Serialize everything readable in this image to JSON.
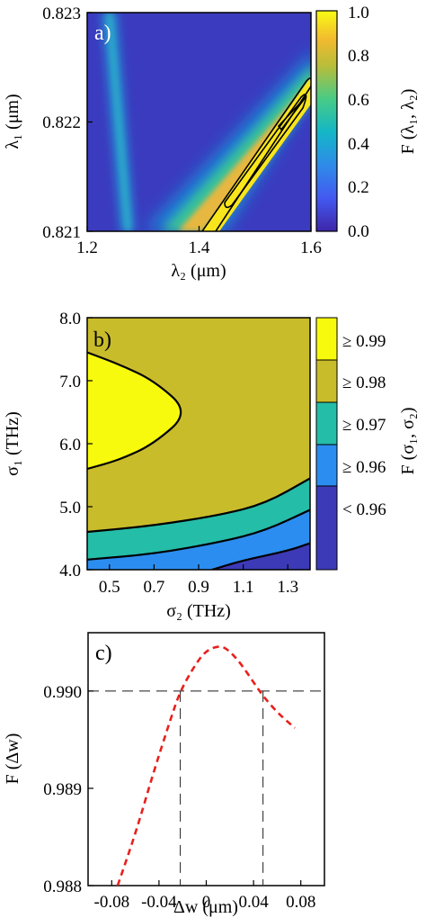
{
  "figure": {
    "panels": [
      {
        "id": "a",
        "label": "a)",
        "type": "heatmap",
        "xlabel": "λ₂ (μm)",
        "ylabel": "λ₁ (μm)",
        "colorbar_label": "F (λ₁, λ₂)",
        "xticks": [
          "1.2",
          "1.4",
          "1.6"
        ],
        "yticks": [
          "0.823",
          "0.822",
          "0.821"
        ],
        "colorbar_ticks": [
          "1.0",
          "0.8",
          "0.6",
          "0.4",
          "0.2",
          "0.0"
        ]
      },
      {
        "id": "b",
        "label": "b)",
        "type": "contour",
        "xlabel": "σ₂ (THz)",
        "ylabel": "σ₁ (THz)",
        "colorbar_label": "F (σ₁, σ₂)",
        "xticks": [
          "0.5",
          "0.7",
          "0.9",
          "1.1",
          "1.3"
        ],
        "yticks": [
          "8.0",
          "7.0",
          "6.0",
          "5.0",
          "4.0"
        ],
        "colorbar_levels": [
          "≥ 0.99",
          "≥ 0.98",
          "≥ 0.97",
          "≥ 0.96",
          "< 0.96"
        ]
      },
      {
        "id": "c",
        "label": "c)",
        "type": "line",
        "xlabel": "Δw (μm)",
        "ylabel": "F (Δw)",
        "xticks": [
          "-0.08",
          "-0.04",
          "0",
          "0.04",
          "0.08"
        ],
        "yticks": [
          "0.990",
          "0.989",
          "0.988"
        ]
      }
    ]
  },
  "chart_data": [
    {
      "type": "heatmap",
      "title": "a)",
      "xlabel": "λ₂ (μm)",
      "ylabel": "λ₁ (μm)",
      "xlim": [
        1.2,
        1.6
      ],
      "ylim": [
        0.821,
        0.823
      ],
      "colorbar": {
        "label": "F (λ₁, λ₂)",
        "range": [
          0.0,
          1.0
        ],
        "colormap": "parula"
      },
      "features": [
        {
          "name": "thin band",
          "from": {
            "x": 1.3,
            "y": 0.821
          },
          "to": {
            "x": 1.23,
            "y": 0.823
          },
          "peak_value": 0.45
        },
        {
          "name": "main band",
          "from": {
            "x": 1.4,
            "y": 0.821
          },
          "to": {
            "x": 1.6,
            "y": 0.8224
          },
          "peak_value": 1.0
        }
      ],
      "contour_levels": [
        0.9,
        0.98
      ]
    },
    {
      "type": "heatmap",
      "title": "b)",
      "xlabel": "σ₂ (THz)",
      "ylabel": "σ₁ (THz)",
      "xlim": [
        0.4,
        1.4
      ],
      "ylim": [
        4.0,
        8.0
      ],
      "colorbar": {
        "label": "F (σ₁, σ₂)",
        "levels": [
          "≥ 0.99",
          "≥ 0.98",
          "≥ 0.97",
          "≥ 0.96",
          "< 0.96"
        ]
      },
      "level_colors": {
        "≥ 0.99": "#f8fa0d",
        "≥ 0.98": "#c9bc2a",
        "≥ 0.97": "#24bda8",
        "≥ 0.96": "#2c8df0",
        "< 0.96": "#3d3ab8"
      },
      "contours": [
        {
          "level": 0.99,
          "points": [
            [
              0.4,
              5.6
            ],
            [
              0.55,
              5.75
            ],
            [
              0.7,
              6.0
            ],
            [
              0.86,
              6.5
            ],
            [
              0.7,
              7.0
            ],
            [
              0.55,
              7.25
            ],
            [
              0.4,
              7.45
            ]
          ]
        },
        {
          "level": 0.98,
          "points": [
            [
              0.4,
              4.6
            ],
            [
              0.7,
              4.7
            ],
            [
              1.0,
              4.87
            ],
            [
              1.2,
              5.05
            ],
            [
              1.4,
              5.45
            ]
          ]
        },
        {
          "level": 0.97,
          "points": [
            [
              0.4,
              4.16
            ],
            [
              0.7,
              4.25
            ],
            [
              1.0,
              4.44
            ],
            [
              1.2,
              4.62
            ],
            [
              1.4,
              4.95
            ]
          ]
        },
        {
          "level": 0.96,
          "points": [
            [
              0.96,
              4.0
            ],
            [
              1.1,
              4.15
            ],
            [
              1.3,
              4.3
            ],
            [
              1.4,
              4.42
            ]
          ]
        }
      ]
    },
    {
      "type": "line",
      "title": "c)",
      "xlabel": "Δw (μm)",
      "ylabel": "F (Δw)",
      "xlim": [
        -0.1,
        0.1
      ],
      "ylim": [
        0.988,
        0.9906
      ],
      "series": [
        {
          "style": "dashed",
          "color": "#e8201c",
          "x": [
            -0.075,
            -0.06,
            -0.045,
            -0.03,
            -0.022,
            -0.01,
            0.0,
            0.012,
            0.02,
            0.03,
            0.04,
            0.048,
            0.06,
            0.075
          ],
          "y": [
            0.988,
            0.98853,
            0.98915,
            0.98972,
            0.99,
            0.99026,
            0.99042,
            0.99047,
            0.99041,
            0.99027,
            0.99009,
            0.98995,
            0.98978,
            0.98962
          ]
        }
      ],
      "reference_lines": [
        {
          "orientation": "horizontal",
          "y": 0.99,
          "style": "dashed"
        },
        {
          "orientation": "vertical",
          "x": -0.022,
          "style": "dashed"
        },
        {
          "orientation": "vertical",
          "x": 0.048,
          "style": "dashed"
        }
      ]
    }
  ]
}
